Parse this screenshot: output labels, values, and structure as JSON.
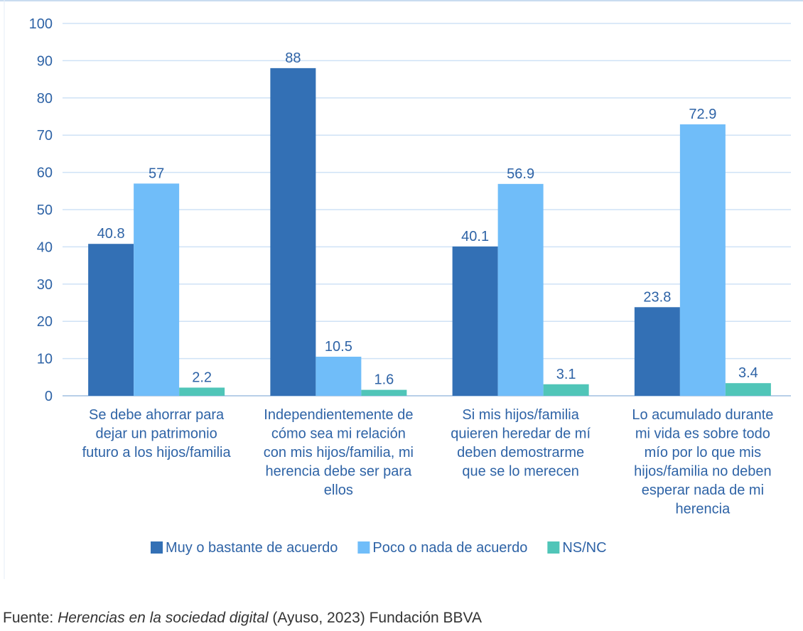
{
  "chart_data": {
    "type": "bar",
    "title": "",
    "xlabel": "",
    "ylabel": "",
    "ylim": [
      0,
      100
    ],
    "yticks": [
      0,
      10,
      20,
      30,
      40,
      50,
      60,
      70,
      80,
      90,
      100
    ],
    "grid": true,
    "legend_position": "bottom",
    "categories": [
      [
        "Se debe ahorrar para",
        "dejar un patrimonio",
        "futuro a los hijos/familia"
      ],
      [
        "Independientemente de",
        "cómo sea mi relación",
        "con mis hijos/familia, mi",
        "herencia debe ser para",
        "ellos"
      ],
      [
        "Si mis hijos/familia",
        "quieren heredar de mí",
        "deben demostrarme",
        "que se lo merecen"
      ],
      [
        "Lo acumulado durante",
        "mi vida es sobre todo",
        "mío por lo que mis",
        "hijos/familia no deben",
        "esperar nada de mi",
        "herencia"
      ]
    ],
    "series": [
      {
        "name": "Muy o bastante de acuerdo",
        "color": "#3370b5",
        "values": [
          40.8,
          88,
          40.1,
          23.8
        ]
      },
      {
        "name": "Poco o nada de acuerdo",
        "color": "#70bdf9",
        "values": [
          57,
          10.5,
          56.9,
          72.9
        ]
      },
      {
        "name": "NS/NC",
        "color": "#50c5b8",
        "values": [
          2.2,
          1.6,
          3.1,
          3.4
        ]
      }
    ],
    "colors": {
      "text": "#2e63a6",
      "grid": "#cfe2f6",
      "axis": "#b8cfe8"
    }
  },
  "source": {
    "prefix": "Fuente: ",
    "italic": "Herencias en la sociedad digital",
    "suffix": " (Ayuso, 2023) Fundación BBVA"
  }
}
